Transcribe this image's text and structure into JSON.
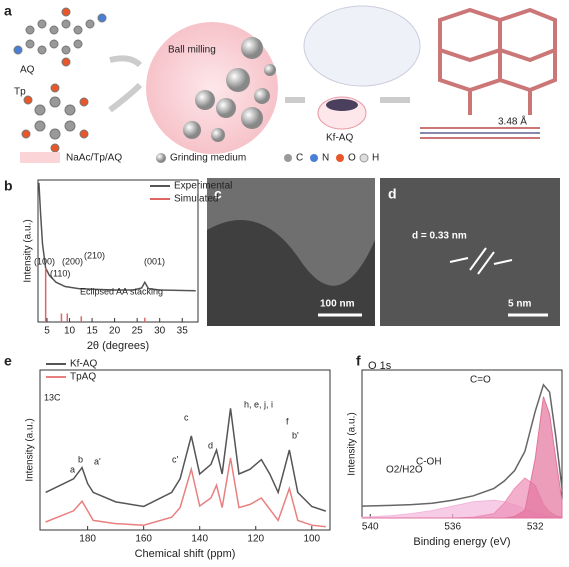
{
  "panel_labels": [
    "a",
    "b",
    "c",
    "d",
    "e",
    "f"
  ],
  "scheme": {
    "molecule_1": "AQ",
    "molecule_2": "Tp",
    "process": "Ball milling",
    "product": "Kf-AQ",
    "spacing": "3.48 Å",
    "legend": [
      "NaAc/Tp/AQ",
      "Grinding medium",
      "C",
      "N",
      "O",
      "H"
    ]
  },
  "tem": {
    "scale_c": "100 nm",
    "measurement": "d = 0.33 nm",
    "scale_d": "5 nm"
  },
  "chart_data": [
    {
      "type": "line",
      "xlabel": "2θ (degrees)",
      "ylabel": "Intensity (a.u.)",
      "xlim": [
        3,
        38.5
      ],
      "ylim": [
        0,
        100
      ],
      "xticks": [
        5,
        10,
        15,
        20,
        25,
        30,
        35
      ],
      "series": [
        {
          "name": "Experimental",
          "color": "#555555",
          "x": [
            3.2,
            3.6,
            4.0,
            4.7,
            5.5,
            7,
            9,
            12,
            16,
            20,
            24,
            26,
            26.7,
            27.5,
            30,
            38
          ],
          "values": [
            98,
            75,
            55,
            38,
            33,
            28,
            25,
            23.5,
            23,
            22.5,
            22.5,
            24,
            28,
            23.5,
            22.5,
            22
          ]
        },
        {
          "name": "Simulated",
          "color": "#e06666",
          "style": "sticks",
          "x": [
            4.7,
            8.2,
            9.5,
            12.6,
            26.7
          ],
          "values": [
            38,
            6,
            6,
            4,
            3
          ]
        }
      ],
      "annotations": [
        "(100)",
        "(110)",
        "(200)",
        "(210)",
        "(001)",
        "Eclipsed AA stacking"
      ]
    },
    {
      "type": "line",
      "xlabel": "Chemical shift (ppm)",
      "ylabel": "Intensity (a.u.)",
      "xlim": [
        197,
        93.5
      ],
      "ylim": [
        0,
        100
      ],
      "xticks": [
        180,
        160,
        140,
        120,
        100
      ],
      "series": [
        {
          "name": "Kf-AQ",
          "color": "#555555",
          "x": [
            195,
            185,
            182,
            180,
            178,
            170,
            160,
            150,
            147,
            143,
            140,
            136,
            134,
            132,
            129,
            126,
            122,
            118,
            115,
            112,
            108,
            105,
            100,
            95
          ],
          "values": [
            23.5,
            32,
            39,
            29,
            23.5,
            17.6,
            14.7,
            23.5,
            32,
            58.8,
            35,
            41,
            50,
            35,
            76,
            35,
            38,
            44,
            35,
            23.5,
            50,
            23.5,
            14.7,
            11.8
          ]
        },
        {
          "name": "TpAQ",
          "color": "#e88080",
          "x": [
            195,
            185,
            182,
            180,
            178,
            170,
            160,
            150,
            147,
            143,
            140,
            136,
            134,
            132,
            129,
            126,
            122,
            118,
            115,
            112,
            108,
            105,
            100,
            95
          ],
          "values": [
            5,
            12,
            18,
            12,
            6,
            4,
            3,
            8,
            14,
            38,
            15,
            20,
            28,
            14,
            45,
            14,
            16,
            20,
            13,
            6,
            26,
            6,
            3,
            2
          ]
        }
      ],
      "annotations": [
        "13C",
        "a",
        "b",
        "a'",
        "c'",
        "c",
        "d",
        "h, e, j, i",
        "f",
        "b'"
      ]
    },
    {
      "type": "area",
      "title": "O 1s",
      "xlabel": "Binding energy (eV)",
      "ylabel": "Intensity (a.u.)",
      "xlim": [
        540.4,
        530.7
      ],
      "ylim": [
        0,
        100
      ],
      "xticks": [
        540,
        536,
        532
      ],
      "x": [
        540.4,
        539,
        538,
        537,
        536,
        535,
        534,
        533.5,
        533,
        532.5,
        532,
        531.6,
        531.3,
        531,
        530.7
      ],
      "series": [
        {
          "name": "O2/H2O",
          "color": "#f3b6dc",
          "values": [
            0.5,
            1.5,
            3,
            5,
            8,
            11,
            12,
            11,
            9,
            6,
            3.5,
            2,
            1,
            0.5,
            0.2
          ]
        },
        {
          "name": "C-OH",
          "color": "#ec8fb8",
          "values": [
            0,
            0,
            0,
            0,
            0,
            0.5,
            3,
            10,
            20,
            27,
            22,
            9,
            4,
            1.5,
            0.5
          ]
        },
        {
          "name": "C=O",
          "color": "#e2749c",
          "values": [
            0,
            0,
            0,
            0,
            0,
            0,
            0,
            0,
            1,
            5,
            40,
            82,
            70,
            40,
            12
          ]
        },
        {
          "name": "Envelope",
          "color": "#666666",
          "style": "line",
          "values": [
            8,
            8.5,
            9,
            10,
            12,
            15,
            20,
            25,
            32,
            45,
            72,
            90,
            85,
            55,
            20
          ]
        }
      ]
    }
  ]
}
